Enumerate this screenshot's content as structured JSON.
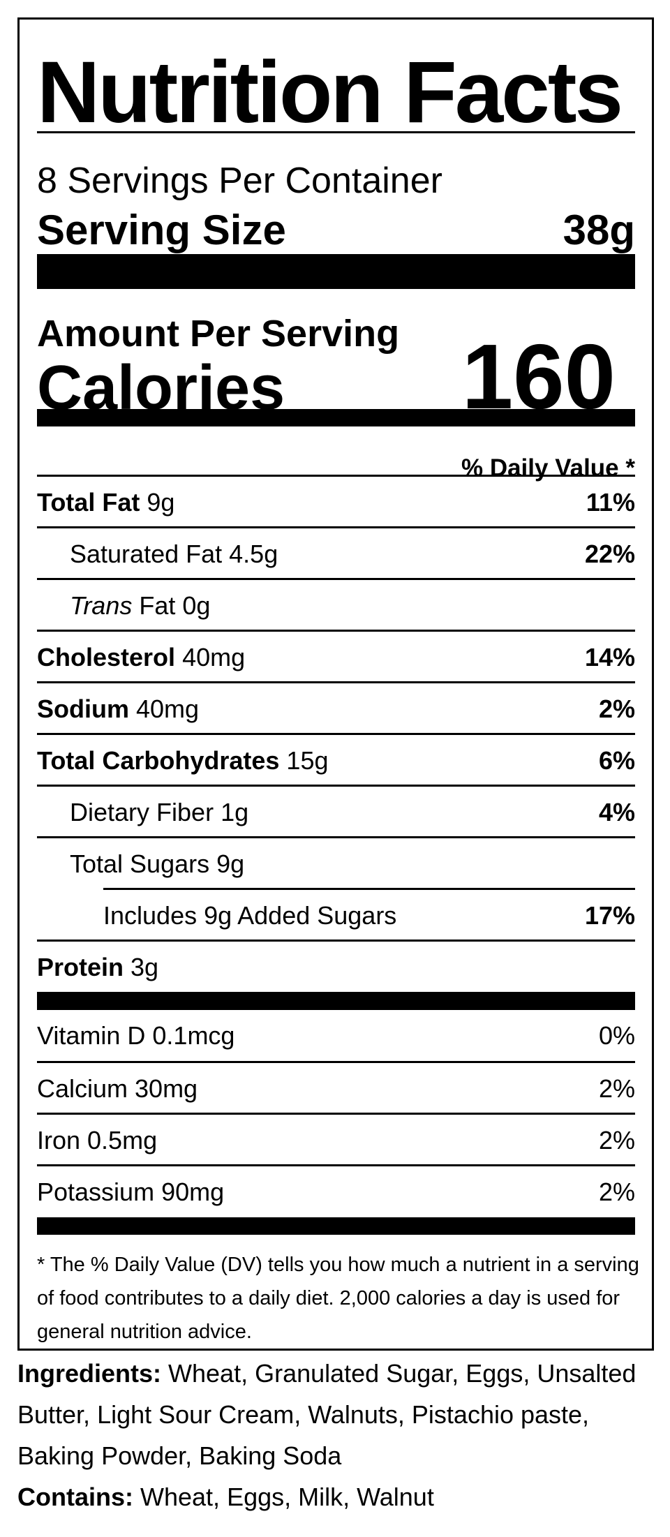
{
  "label": {
    "title": "Nutrition Facts",
    "servings_per_container": "8 Servings Per Container",
    "serving_size_label": "Serving Size",
    "serving_size_value": "38g",
    "amount_per_serving": "Amount Per Serving",
    "calories_label": "Calories",
    "calories_value": "160",
    "daily_value_header": "% Daily Value *",
    "nutrients": [
      {
        "name": "Total Fat",
        "amount": "9g",
        "dv": "11%"
      },
      {
        "name": "Saturated Fat",
        "amount": "4.5g",
        "dv": "22%"
      },
      {
        "name_italic": "Trans",
        "name": "Fat",
        "amount": "0g",
        "dv": ""
      },
      {
        "name": "Cholesterol",
        "amount": "40mg",
        "dv": "14%"
      },
      {
        "name": "Sodium",
        "amount": "40mg",
        "dv": "2%"
      },
      {
        "name": "Total Carbohydrates",
        "amount": "15g",
        "dv": "6%"
      },
      {
        "name": "Dietary Fiber",
        "amount": "1g",
        "dv": "4%"
      },
      {
        "name": "Total Sugars",
        "amount": "9g",
        "dv": ""
      },
      {
        "text": "Includes 9g Added Sugars",
        "dv": "17%"
      },
      {
        "name": "Protein",
        "amount": "3g",
        "dv": ""
      }
    ],
    "vitamins": [
      {
        "text": "Vitamin D 0.1mcg",
        "dv": "0%"
      },
      {
        "text": "Calcium 30mg",
        "dv": "2%"
      },
      {
        "text": "Iron 0.5mg",
        "dv": "2%"
      },
      {
        "text": "Potassium 90mg",
        "dv": "2%"
      }
    ],
    "footnote": "* The % Daily Value (DV) tells you how much a nutrient in a serving of food contributes to a daily diet. 2,000 calories a day is used for general nutrition advice."
  },
  "ingredients": {
    "label": "Ingredients:",
    "text": "Wheat, Granulated Sugar, Eggs, Unsalted Butter, Light Sour Cream, Walnuts, Pistachio paste, Baking Powder, Baking Soda"
  },
  "contains": {
    "label": "Contains:",
    "text": "Wheat, Eggs, Milk, Walnut"
  }
}
